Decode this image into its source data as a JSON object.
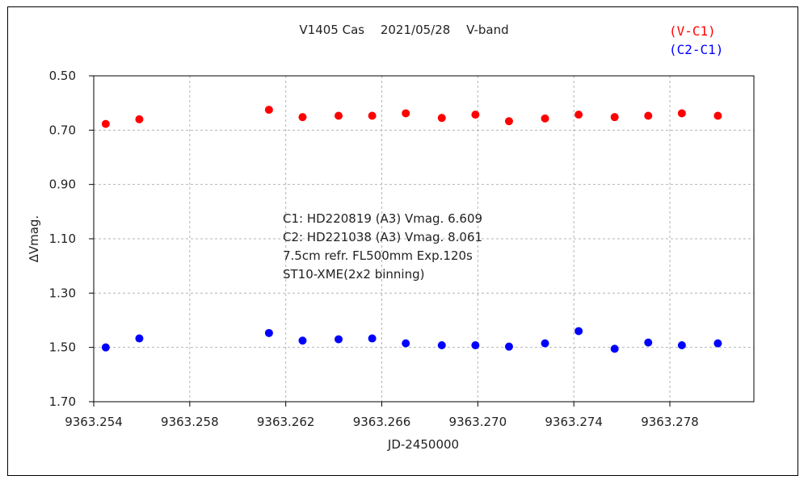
{
  "chart_data": {
    "type": "scatter",
    "title": "V1405 Cas　 2021/05/28　 V-band",
    "xlabel": "JD-2450000",
    "ylabel": "∆Vmag.",
    "xlim": [
      9363.254,
      9363.2815
    ],
    "ylim": [
      0.5,
      1.7
    ],
    "y_inverted": true,
    "grid": true,
    "x_ticks": [
      9363.254,
      9363.258,
      9363.262,
      9363.266,
      9363.27,
      9363.274,
      9363.278
    ],
    "x_tick_labels": [
      "9363.254",
      "9363.258",
      "9363.262",
      "9363.266",
      "9363.270",
      "9363.274",
      "9363.278"
    ],
    "y_ticks": [
      0.5,
      0.7,
      0.9,
      1.1,
      1.3,
      1.5,
      1.7
    ],
    "y_tick_labels": [
      "0.50",
      "0.70",
      "0.90",
      "1.10",
      "1.30",
      "1.50",
      "1.70"
    ],
    "legend_position": "top-right",
    "annotations": [
      "C1: HD220819 (A3) Vmag. 6.609",
      "C2: HD221038 (A3) Vmag. 8.061",
      "7.5cm refr. FL500mm  Exp.120s",
      "ST10-XME(2x2 binning)"
    ],
    "series": [
      {
        "name": "(V-C1)",
        "color": "#ff0000",
        "x": [
          9363.2545,
          9363.2559,
          9363.2613,
          9363.2627,
          9363.2642,
          9363.2656,
          9363.267,
          9363.2685,
          9363.2699,
          9363.2713,
          9363.2728,
          9363.2742,
          9363.2757,
          9363.2771,
          9363.2785,
          9363.28
        ],
        "y": [
          0.677,
          0.66,
          0.625,
          0.652,
          0.647,
          0.647,
          0.638,
          0.655,
          0.643,
          0.667,
          0.657,
          0.643,
          0.652,
          0.647,
          0.638,
          0.647
        ]
      },
      {
        "name": "(C2-C1)",
        "color": "#0000ff",
        "x": [
          9363.2545,
          9363.2559,
          9363.2613,
          9363.2627,
          9363.2642,
          9363.2656,
          9363.267,
          9363.2685,
          9363.2699,
          9363.2713,
          9363.2728,
          9363.2742,
          9363.2757,
          9363.2771,
          9363.2785,
          9363.28
        ],
        "y": [
          1.5,
          1.467,
          1.447,
          1.475,
          1.47,
          1.467,
          1.485,
          1.492,
          1.492,
          1.497,
          1.485,
          1.44,
          1.505,
          1.482,
          1.492,
          1.485
        ]
      }
    ]
  }
}
